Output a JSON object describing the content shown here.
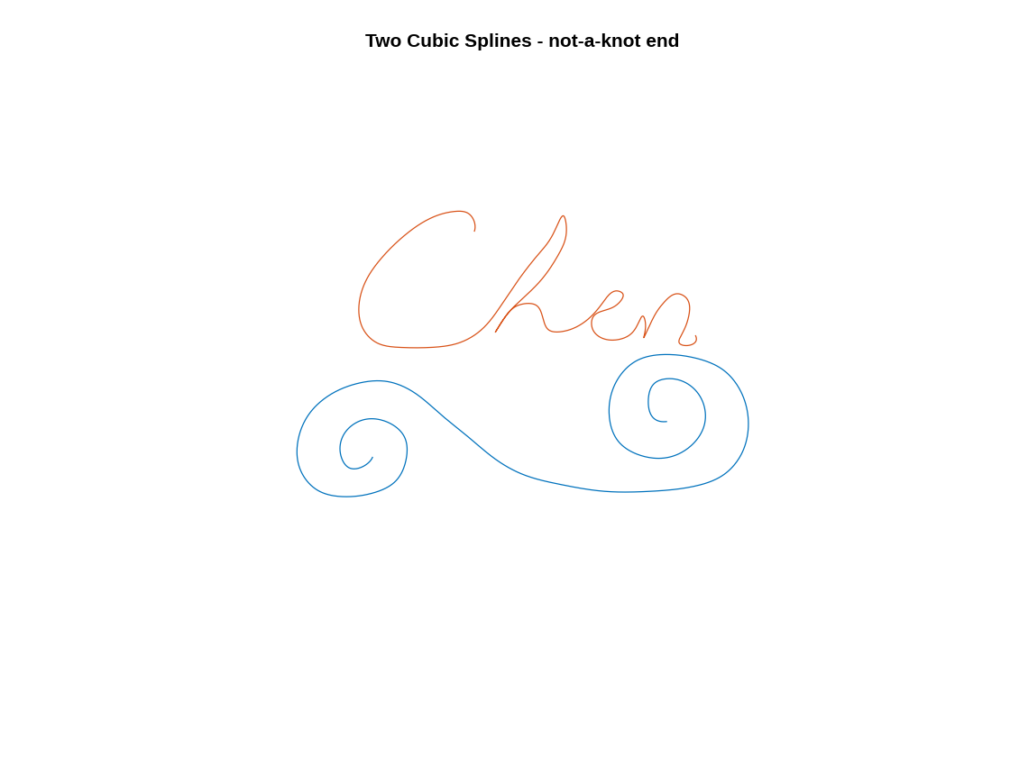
{
  "chart_data": {
    "type": "line",
    "title": "Two Cubic Splines - not-a-knot end",
    "xlim": [
      150,
      1010
    ],
    "ylim": [
      90,
      780
    ],
    "tick_labels": false,
    "grid": false,
    "series": [
      {
        "color": "#0072BD",
        "x": [
          415,
          405,
          390,
          380,
          385,
          405,
          430,
          450,
          452,
          440,
          415,
          385,
          355,
          335,
          333,
          345,
          370,
          400,
          430,
          460,
          490,
          520,
          550,
          580,
          620,
          670,
          720,
          770,
          800,
          820,
          828,
          820,
          800,
          770,
          740,
          705,
          682,
          675,
          685,
          710,
          740,
          765,
          780,
          775,
          760,
          740,
          725,
          718,
          722,
          738
        ],
        "values": [
          332,
          322,
          320,
          335,
          360,
          374,
          372,
          355,
          330,
          305,
          292,
          288,
          295,
          320,
          350,
          380,
          403,
          415,
          417,
          405,
          380,
          355,
          330,
          313,
          302,
          294,
          294,
          300,
          312,
          335,
          370,
          405,
          430,
          443,
          447,
          440,
          415,
          380,
          350,
          334,
          332,
          345,
          370,
          400,
          415,
          420,
          415,
          395,
          378,
          372
        ]
      },
      {
        "color": "#D95319",
        "x": [
          527,
          527,
          520,
          505,
          480,
          450,
          425,
          408,
          400,
          405,
          420,
          445,
          480,
          510,
          535,
          555,
          575,
          598,
          615,
          625,
          628,
          620,
          600,
          575,
          558,
          550,
          560,
          578,
          595,
          603,
          608,
          625,
          650,
          668,
          685,
          690,
          686,
          672,
          658,
          657,
          668,
          690,
          705,
          712,
          715,
          713,
          722,
          735,
          750,
          760,
          762,
          755,
          752,
          760,
          770
        ],
        "values": [
          585,
          595,
          605,
          607,
          600,
          580,
          555,
          530,
          500,
          475,
          460,
          455,
          455,
          460,
          475,
          500,
          530,
          560,
          585,
          602,
          590,
          560,
          530,
          505,
          485,
          472,
          488,
          503,
          502,
          485,
          475,
          473,
          485,
          505,
          518,
          515,
          505,
          497,
          490,
          475,
          465,
          465,
          478,
          490,
          478,
          466,
          485,
          505,
          515,
          510,
          488,
          470,
          460,
          457,
          468
        ]
      }
    ]
  }
}
